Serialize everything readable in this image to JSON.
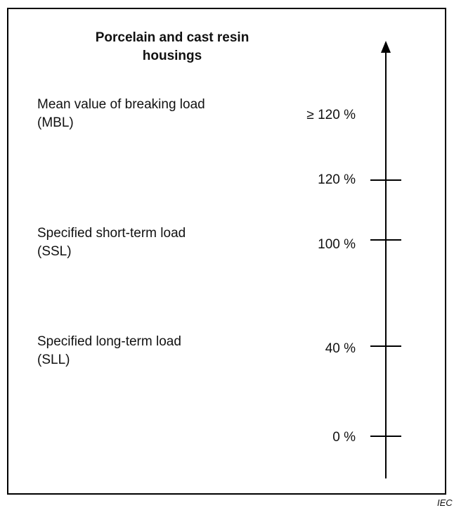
{
  "title": [
    "Porcelain and cast resin",
    "housings"
  ],
  "loads": [
    {
      "name": "Mean value of breaking load",
      "abbr": "(MBL)",
      "level": "≥ 120 %"
    },
    {
      "name": "Specified short-term load",
      "abbr": "(SSL)"
    },
    {
      "name": "Specified long-term load",
      "abbr": "(SLL)"
    }
  ],
  "scale": [
    "120 %",
    "100 %",
    "40 %",
    "0 %"
  ],
  "footer": "IEC"
}
